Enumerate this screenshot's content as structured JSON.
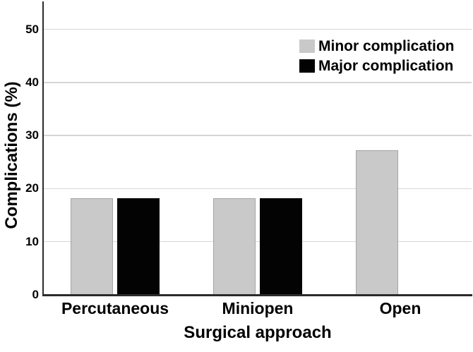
{
  "chart_data": {
    "type": "bar",
    "title": "",
    "xlabel": "Surgical approach",
    "ylabel": "Complications (%)",
    "categories": [
      "Percutaneous",
      "Miniopen",
      "Open"
    ],
    "series": [
      {
        "name": "Minor complication",
        "color": "#c9c9c9",
        "values": [
          18.2,
          18.2,
          27.3
        ]
      },
      {
        "name": "Major complication",
        "color": "#030303",
        "values": [
          18.2,
          18.2,
          0
        ]
      }
    ],
    "ylim": [
      0,
      55
    ],
    "yticks": [
      0,
      10,
      20,
      30,
      40,
      50
    ],
    "grid": "horizontal",
    "gridline_color": "#d6d6d6",
    "axis_color": "#2b2b2b",
    "text_color": "#000000",
    "background": "#ffffff",
    "legend_position": "top-right"
  }
}
